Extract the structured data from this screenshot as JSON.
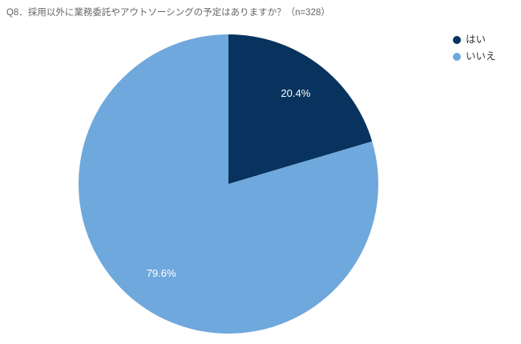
{
  "chart_data": {
    "type": "pie",
    "title": "Q8．採用以外に業務委託やアウトソーシングの予定はありますか？（n=328）",
    "categories": [
      "はい",
      "いいえ"
    ],
    "values": [
      20.4,
      79.6
    ],
    "value_labels": [
      "20.4%",
      "79.6%"
    ],
    "colors": [
      "#08335e",
      "#6fa8dc"
    ],
    "legend": "top-right"
  }
}
